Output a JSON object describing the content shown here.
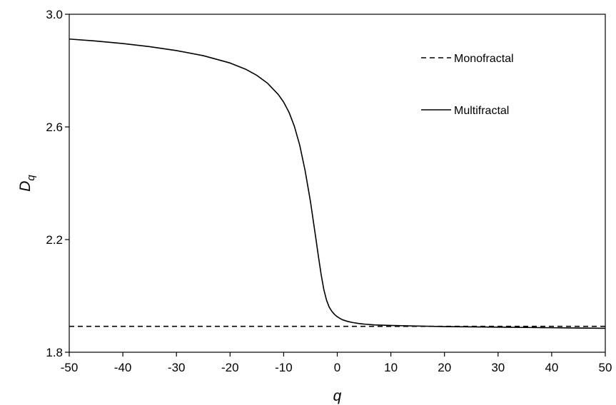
{
  "chart_data": {
    "type": "line",
    "title": "",
    "xlabel": "q",
    "ylabel_main": "D",
    "ylabel_sub": "q",
    "xlim": [
      -50,
      50
    ],
    "ylim": [
      1.8,
      3.0
    ],
    "xticks": [
      -50,
      -40,
      -30,
      -20,
      -10,
      0,
      10,
      20,
      30,
      40,
      50
    ],
    "yticks": [
      1.8,
      2.2,
      2.6,
      3.0
    ],
    "ytick_labels": [
      "1.8",
      "2.2",
      "2.6",
      "3.0"
    ],
    "grid": false,
    "legend_position": "top-right",
    "series": [
      {
        "name": "Monofractal",
        "style": "dashed",
        "color": "#000000",
        "x": [
          -50,
          50
        ],
        "y": [
          1.892,
          1.892
        ]
      },
      {
        "name": "Multifractal",
        "style": "solid",
        "color": "#000000",
        "x": [
          -50,
          -45,
          -40,
          -35,
          -30,
          -25,
          -20,
          -17,
          -15,
          -13,
          -11,
          -10,
          -9,
          -8,
          -7,
          -6,
          -5,
          -4.5,
          -4,
          -3.5,
          -3,
          -2.5,
          -2,
          -1.5,
          -1,
          -0.5,
          0,
          0.5,
          1,
          2,
          3,
          4,
          5,
          7,
          10,
          15,
          20,
          25,
          30,
          35,
          40,
          45,
          50
        ],
        "y": [
          2.912,
          2.905,
          2.896,
          2.885,
          2.871,
          2.853,
          2.827,
          2.804,
          2.783,
          2.755,
          2.715,
          2.688,
          2.652,
          2.602,
          2.535,
          2.445,
          2.335,
          2.27,
          2.205,
          2.138,
          2.075,
          2.022,
          1.985,
          1.96,
          1.945,
          1.934,
          1.926,
          1.92,
          1.915,
          1.909,
          1.905,
          1.902,
          1.9,
          1.897,
          1.895,
          1.893,
          1.891,
          1.89,
          1.889,
          1.888,
          1.887,
          1.886,
          1.885
        ]
      }
    ]
  }
}
